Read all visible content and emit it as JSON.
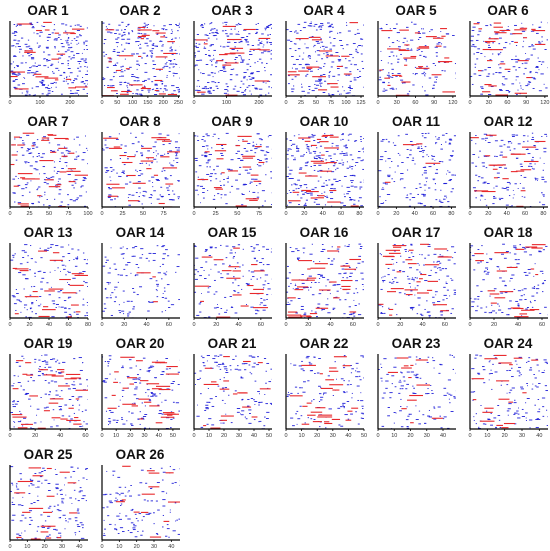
{
  "figure": {
    "panel_titles": [
      "OAR 1",
      "OAR 2",
      "OAR 3",
      "OAR 4",
      "OAR 5",
      "OAR 6",
      "OAR 7",
      "OAR 8",
      "OAR 9",
      "OAR 10",
      "OAR 11",
      "OAR 12",
      "OAR 13",
      "OAR 14",
      "OAR 15",
      "OAR 16",
      "OAR 17",
      "OAR 18",
      "OAR 19",
      "OAR 20",
      "OAR 21",
      "OAR 22",
      "OAR 23",
      "OAR 24",
      "OAR 25",
      "OAR 26"
    ],
    "colors": {
      "minor": "#1f1fd8",
      "major": "#e8282b",
      "axis": "#000000"
    }
  },
  "chart_data": [
    {
      "type": "scatter",
      "title": "OAR 1",
      "xticks": [
        "0",
        "100",
        "200"
      ],
      "xlim": [
        0,
        260
      ],
      "density": 1.0,
      "red_share": 0.25,
      "seed": 11
    },
    {
      "type": "scatter",
      "title": "OAR 2",
      "xticks": [
        "0",
        "50",
        "100",
        "150",
        "200",
        "250"
      ],
      "xlim": [
        0,
        255
      ],
      "density": 1.0,
      "red_share": 0.35,
      "seed": 12
    },
    {
      "type": "scatter",
      "title": "OAR 3",
      "xticks": [
        "0",
        "100",
        "200"
      ],
      "xlim": [
        0,
        240
      ],
      "density": 1.0,
      "red_share": 0.2,
      "seed": 13
    },
    {
      "type": "scatter",
      "title": "OAR 4",
      "xticks": [
        "0",
        "25",
        "50",
        "75",
        "100",
        "125"
      ],
      "xlim": [
        0,
        130
      ],
      "density": 0.8,
      "red_share": 0.2,
      "seed": 14
    },
    {
      "type": "scatter",
      "title": "OAR 5",
      "xticks": [
        "0",
        "30",
        "60",
        "90",
        "120"
      ],
      "xlim": [
        0,
        125
      ],
      "density": 0.5,
      "red_share": 0.35,
      "seed": 15
    },
    {
      "type": "scatter",
      "title": "OAR 6",
      "xticks": [
        "0",
        "30",
        "60",
        "90",
        "120"
      ],
      "xlim": [
        0,
        125
      ],
      "density": 0.6,
      "red_share": 0.35,
      "seed": 16
    },
    {
      "type": "scatter",
      "title": "OAR 7",
      "xticks": [
        "0",
        "25",
        "50",
        "75",
        "100"
      ],
      "xlim": [
        0,
        100
      ],
      "density": 0.6,
      "red_share": 0.4,
      "seed": 17
    },
    {
      "type": "scatter",
      "title": "OAR 8",
      "xticks": [
        "0",
        "25",
        "50",
        "75"
      ],
      "xlim": [
        0,
        95
      ],
      "density": 0.6,
      "red_share": 0.3,
      "seed": 18
    },
    {
      "type": "scatter",
      "title": "OAR 9",
      "xticks": [
        "0",
        "25",
        "50",
        "75"
      ],
      "xlim": [
        0,
        90
      ],
      "density": 0.6,
      "red_share": 0.25,
      "seed": 19
    },
    {
      "type": "scatter",
      "title": "OAR 10",
      "xticks": [
        "0",
        "20",
        "40",
        "60",
        "80"
      ],
      "xlim": [
        0,
        85
      ],
      "density": 0.9,
      "red_share": 0.3,
      "seed": 20
    },
    {
      "type": "scatter",
      "title": "OAR 11",
      "xticks": [
        "0",
        "20",
        "40",
        "60",
        "80"
      ],
      "xlim": [
        0,
        85
      ],
      "density": 0.6,
      "red_share": 0.05,
      "seed": 21
    },
    {
      "type": "scatter",
      "title": "OAR 12",
      "xticks": [
        "0",
        "20",
        "40",
        "60",
        "80"
      ],
      "xlim": [
        0,
        85
      ],
      "density": 0.55,
      "red_share": 0.25,
      "seed": 22
    },
    {
      "type": "scatter",
      "title": "OAR 13",
      "xticks": [
        "0",
        "20",
        "40",
        "60",
        "80"
      ],
      "xlim": [
        0,
        80
      ],
      "density": 0.55,
      "red_share": 0.25,
      "seed": 23
    },
    {
      "type": "scatter",
      "title": "OAR 14",
      "xticks": [
        "0",
        "20",
        "40",
        "60"
      ],
      "xlim": [
        0,
        70
      ],
      "density": 0.45,
      "red_share": 0.03,
      "seed": 24
    },
    {
      "type": "scatter",
      "title": "OAR 15",
      "xticks": [
        "0",
        "20",
        "40",
        "60"
      ],
      "xlim": [
        0,
        70
      ],
      "density": 0.5,
      "red_share": 0.2,
      "seed": 25
    },
    {
      "type": "scatter",
      "title": "OAR 16",
      "xticks": [
        "0",
        "20",
        "40",
        "60"
      ],
      "xlim": [
        0,
        70
      ],
      "density": 0.55,
      "red_share": 0.35,
      "seed": 26
    },
    {
      "type": "scatter",
      "title": "OAR 17",
      "xticks": [
        "0",
        "20",
        "40",
        "60"
      ],
      "xlim": [
        0,
        70
      ],
      "density": 0.55,
      "red_share": 0.35,
      "seed": 27
    },
    {
      "type": "scatter",
      "title": "OAR 18",
      "xticks": [
        "0",
        "20",
        "40",
        "60"
      ],
      "xlim": [
        0,
        65
      ],
      "density": 0.5,
      "red_share": 0.25,
      "seed": 28
    },
    {
      "type": "scatter",
      "title": "OAR 19",
      "xticks": [
        "0",
        "20",
        "40",
        "60"
      ],
      "xlim": [
        0,
        62
      ],
      "density": 0.55,
      "red_share": 0.35,
      "seed": 29
    },
    {
      "type": "scatter",
      "title": "OAR 20",
      "xticks": [
        "0",
        "10",
        "20",
        "30",
        "40",
        "50"
      ],
      "xlim": [
        0,
        55
      ],
      "density": 0.5,
      "red_share": 0.35,
      "seed": 30
    },
    {
      "type": "scatter",
      "title": "OAR 21",
      "xticks": [
        "0",
        "10",
        "20",
        "30",
        "40",
        "50"
      ],
      "xlim": [
        0,
        52
      ],
      "density": 0.5,
      "red_share": 0.2,
      "seed": 31
    },
    {
      "type": "scatter",
      "title": "OAR 22",
      "xticks": [
        "0",
        "10",
        "20",
        "30",
        "40",
        "50"
      ],
      "xlim": [
        0,
        50
      ],
      "density": 0.45,
      "red_share": 0.3,
      "seed": 32
    },
    {
      "type": "scatter",
      "title": "OAR 23",
      "xticks": [
        "0",
        "10",
        "20",
        "30",
        "40"
      ],
      "xlim": [
        0,
        48
      ],
      "density": 0.45,
      "red_share": 0.15,
      "seed": 33
    },
    {
      "type": "scatter",
      "title": "OAR 24",
      "xticks": [
        "0",
        "10",
        "20",
        "30",
        "40"
      ],
      "xlim": [
        0,
        45
      ],
      "density": 0.5,
      "red_share": 0.2,
      "seed": 34
    },
    {
      "type": "scatter",
      "title": "OAR 25",
      "xticks": [
        "0",
        "10",
        "20",
        "30",
        "40"
      ],
      "xlim": [
        0,
        45
      ],
      "density": 0.55,
      "red_share": 0.2,
      "seed": 35
    },
    {
      "type": "scatter",
      "title": "OAR 26",
      "xticks": [
        "0",
        "10",
        "20",
        "30",
        "40"
      ],
      "xlim": [
        0,
        45
      ],
      "density": 0.45,
      "red_share": 0.15,
      "seed": 36
    }
  ]
}
